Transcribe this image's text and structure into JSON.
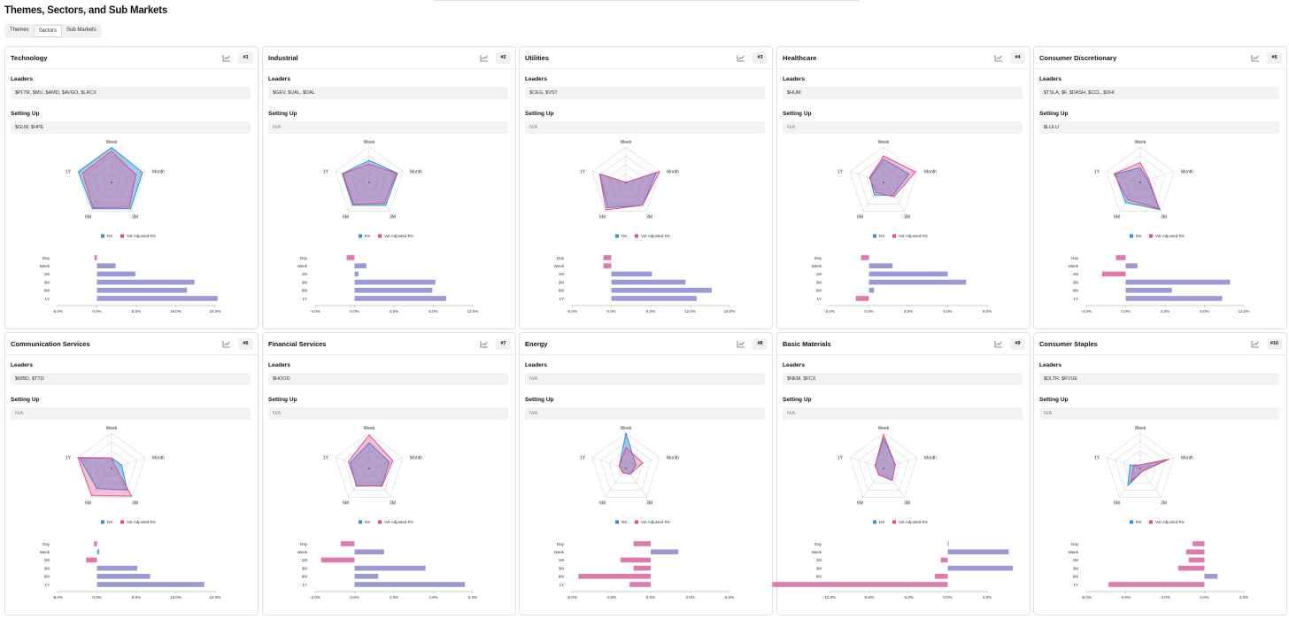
{
  "page_title": "Themes, Sectors, and Sub Markets",
  "tabs": [
    {
      "label": "Themes",
      "active": false
    },
    {
      "label": "Sectors",
      "active": true
    },
    {
      "label": "Sub Markets",
      "active": false
    }
  ],
  "labels": {
    "leaders": "Leaders",
    "setting_up": "Setting Up"
  },
  "colors": {
    "rs": "#2f8fd8",
    "vol_adjusted_rs": "#e0508f",
    "bar": "#9b9ad6",
    "bar_negative": "#e07aae"
  },
  "chart_data": [
    {
      "type": "radar+bar",
      "sector": "Technology",
      "rank": "#1",
      "leaders": "$PLTR, $MU, $AMD, $AVGO, $LRCX",
      "setting_up": "$GLW, $HPE",
      "radar": {
        "axes": [
          "Week",
          "Month",
          "3M",
          "6M",
          "1Y"
        ],
        "series": [
          {
            "name": "RS",
            "values": [
              98,
              92,
              92,
              92,
              98
            ]
          },
          {
            "name": "Vol-Adjusted RS",
            "values": [
              88,
              72,
              86,
              88,
              86
            ]
          }
        ]
      },
      "bars": {
        "categories": [
          "Day",
          "Week",
          "1M",
          "3M",
          "6M",
          "1Y"
        ],
        "values": [
          -0.5,
          3.8,
          7.8,
          19.8,
          18.3,
          24.5
        ],
        "ticks": [
          "-8.0%",
          "0.0%",
          "8.0%",
          "16.0%",
          "24.0%"
        ],
        "xlim": [
          -8,
          24
        ]
      }
    },
    {
      "type": "radar+bar",
      "sector": "Industrial",
      "rank": "#2",
      "leaders": "$GEV, $UAL, $DAL",
      "setting_up": "N/A",
      "radar": {
        "axes": [
          "Week",
          "Month",
          "3M",
          "6M",
          "1Y"
        ],
        "series": [
          {
            "name": "RS",
            "values": [
              62,
              84,
              80,
              80,
              80
            ]
          },
          {
            "name": "Vol-Adjusted RS",
            "values": [
              52,
              82,
              72,
              76,
              78
            ]
          }
        ]
      },
      "bars": {
        "categories": [
          "Day",
          "Week",
          "1M",
          "3M",
          "6M",
          "1Y"
        ],
        "values": [
          -0.8,
          1.2,
          0.4,
          8.2,
          7.9,
          9.3
        ],
        "ticks": [
          "-4.0%",
          "0.0%",
          "4.0%",
          "8.0%",
          "12.0%"
        ],
        "xlim": [
          -4,
          12
        ]
      }
    },
    {
      "type": "radar+bar",
      "sector": "Utilities",
      "rank": "#3",
      "leaders": "$CEG, $VST",
      "setting_up": "N/A",
      "radar": {
        "axes": [
          "Week",
          "Month",
          "3M",
          "6M",
          "1Y"
        ],
        "series": [
          {
            "name": "RS",
            "values": [
              0,
              90,
              80,
              88,
              78
            ]
          },
          {
            "name": "Vol-Adjusted RS",
            "values": [
              0,
              100,
              80,
              96,
              78
            ]
          }
        ]
      },
      "bars": {
        "categories": [
          "Day",
          "Week",
          "1M",
          "3M",
          "6M",
          "1Y"
        ],
        "values": [
          -1.2,
          -1.2,
          6.2,
          11.3,
          15.3,
          13.0
        ],
        "ticks": [
          "-6.0%",
          "0.0%",
          "6.0%",
          "12.0%",
          "18.0%"
        ],
        "xlim": [
          -6,
          18
        ]
      }
    },
    {
      "type": "radar+bar",
      "sector": "Healthcare",
      "rank": "#4",
      "leaders": "$HUM",
      "setting_up": "N/A",
      "radar": {
        "axes": [
          "Week",
          "Month",
          "3M",
          "6M",
          "1Y"
        ],
        "series": [
          {
            "name": "RS",
            "values": [
              66,
              76,
              45,
              44,
              40
            ]
          },
          {
            "name": "Vol-Adjusted RS",
            "values": [
              75,
              95,
              50,
              35,
              42
            ]
          }
        ]
      },
      "bars": {
        "categories": [
          "Day",
          "Week",
          "1M",
          "3M",
          "6M",
          "1Y"
        ],
        "values": [
          -0.6,
          1.8,
          6.0,
          7.4,
          0.4,
          -1.0
        ],
        "ticks": [
          "-3.0%",
          "0.0%",
          "3.0%",
          "6.0%",
          "9.0%"
        ],
        "xlim": [
          -3,
          9
        ]
      }
    },
    {
      "type": "radar+bar",
      "sector": "Consumer Discretionary",
      "rank": "#5",
      "leaders": "$TSLA, $F, $DASH, $CCL, $DHI",
      "setting_up": "$LULU",
      "radar": {
        "axes": [
          "Week",
          "Month",
          "3M",
          "6M",
          "1Y"
        ],
        "series": [
          {
            "name": "RS",
            "values": [
              42,
              22,
              95,
              70,
              75
            ]
          },
          {
            "name": "Vol-Adjusted RS",
            "values": [
              56,
              26,
              92,
              60,
              78
            ]
          }
        ]
      },
      "bars": {
        "categories": [
          "Day",
          "Week",
          "1M",
          "3M",
          "6M",
          "1Y"
        ],
        "values": [
          -1.0,
          1.2,
          -2.4,
          10.6,
          4.7,
          9.8
        ],
        "ticks": [
          "-4.0%",
          "0.0%",
          "4.0%",
          "8.0%",
          "12.0%"
        ],
        "xlim": [
          -4,
          12
        ]
      }
    },
    {
      "type": "radar+bar",
      "sector": "Communication Services",
      "rank": "#6",
      "leaders": "$WBD, $TTD",
      "setting_up": "N/A",
      "radar": {
        "axes": [
          "Week",
          "Month",
          "3M",
          "6M",
          "1Y"
        ],
        "series": [
          {
            "name": "RS",
            "values": [
              30,
              30,
              75,
              70,
              95
            ]
          },
          {
            "name": "Vol-Adjusted RS",
            "values": [
              30,
              12,
              96,
              95,
              100
            ]
          }
        ]
      },
      "bars": {
        "categories": [
          "Day",
          "Week",
          "1M",
          "3M",
          "6M",
          "1Y"
        ],
        "values": [
          -0.6,
          0.5,
          -2.2,
          8.2,
          10.8,
          21.8
        ],
        "ticks": [
          "-8.0%",
          "0.0%",
          "8.0%",
          "16.0%",
          "24.0%"
        ],
        "xlim": [
          -8,
          24
        ]
      }
    },
    {
      "type": "radar+bar",
      "sector": "Financial Services",
      "rank": "#7",
      "leaders": "$HOOD",
      "setting_up": "N/A",
      "radar": {
        "axes": [
          "Week",
          "Month",
          "3M",
          "6M",
          "1Y"
        ],
        "series": [
          {
            "name": "RS",
            "values": [
              72,
              60,
              60,
              62,
              56
            ]
          },
          {
            "name": "Vol-Adjusted RS",
            "values": [
              95,
              70,
              62,
              60,
              62
            ]
          }
        ]
      },
      "bars": {
        "categories": [
          "Day",
          "Week",
          "1M",
          "3M",
          "6M",
          "1Y"
        ],
        "values": [
          -0.7,
          1.5,
          -1.7,
          3.6,
          1.2,
          5.6
        ],
        "ticks": [
          "-2.0%",
          "0.0%",
          "2.0%",
          "4.0%",
          "6.0%"
        ],
        "xlim": [
          -2,
          6
        ]
      }
    },
    {
      "type": "radar+bar",
      "sector": "Energy",
      "rank": "#8",
      "leaders": "N/A",
      "setting_up": "N/A",
      "radar": {
        "axes": [
          "Week",
          "Month",
          "3M",
          "6M",
          "1Y"
        ],
        "series": [
          {
            "name": "RS",
            "values": [
              100,
              30,
              20,
              15,
              20
            ]
          },
          {
            "name": "Vol-Adjusted RS",
            "values": [
              60,
              50,
              20,
              15,
              20
            ]
          }
        ]
      },
      "bars": {
        "categories": [
          "Day",
          "Week",
          "1M",
          "3M",
          "6M",
          "1Y"
        ],
        "values": [
          -1.3,
          2.1,
          -2.3,
          -1.3,
          -5.5,
          -1.6
        ],
        "ticks": [
          "-6.0%",
          "-3.0%",
          "0.0%",
          "3.0%",
          "6.0%"
        ],
        "xlim": [
          -6,
          6
        ]
      }
    },
    {
      "type": "radar+bar",
      "sector": "Basic Materials",
      "rank": "#9",
      "leaders": "$NEM, $FCX",
      "setting_up": "N/A",
      "radar": {
        "axes": [
          "Week",
          "Month",
          "3M",
          "6M",
          "1Y"
        ],
        "series": [
          {
            "name": "RS",
            "values": [
              85,
              35,
              42,
              22,
              25
            ]
          },
          {
            "name": "Vol-Adjusted RS",
            "values": [
              96,
              35,
              42,
              22,
              25
            ]
          }
        ]
      },
      "bars": {
        "categories": [
          "Day",
          "Week",
          "1M",
          "3M",
          "6M",
          "1Y"
        ],
        "values": [
          0.1,
          6.2,
          -0.7,
          6.6,
          -1.3,
          -17.8
        ],
        "ticks": [
          "-12.0%",
          "-8.0%",
          "-4.0%",
          "0.0%",
          "4.0%"
        ],
        "xlim": [
          -12,
          4
        ]
      }
    },
    {
      "type": "radar+bar",
      "sector": "Consumer Staples",
      "rank": "#10",
      "leaders": "$DLTR, $KVUE",
      "setting_up": "N/A",
      "radar": {
        "axes": [
          "Week",
          "Month",
          "3M",
          "6M",
          "1Y"
        ],
        "series": [
          {
            "name": "RS",
            "values": [
              10,
              80,
              10,
              60,
              30
            ]
          },
          {
            "name": "Vol-Adjusted RS",
            "values": [
              10,
              85,
              10,
              45,
              20
            ]
          }
        ]
      },
      "bars": {
        "categories": [
          "Day",
          "Week",
          "1M",
          "3M",
          "6M",
          "1Y"
        ],
        "values": [
          -0.9,
          -1.4,
          -1.2,
          -2.0,
          1.0,
          -7.3
        ],
        "ticks": [
          "-9.0%",
          "-6.0%",
          "-3.0%",
          "0.0%",
          "3.0%"
        ],
        "xlim": [
          -9,
          3
        ]
      }
    }
  ]
}
